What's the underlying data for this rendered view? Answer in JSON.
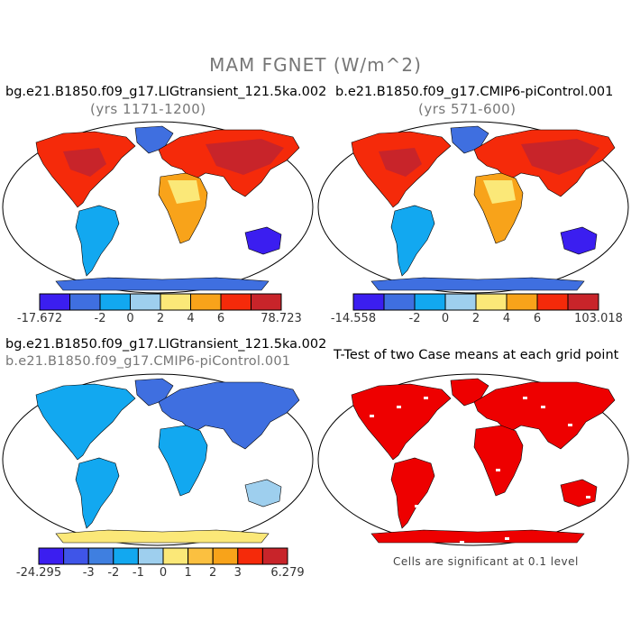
{
  "main_title": "MAM FGNET (W/m^2)",
  "colors": {
    "ocean": "#ffffff",
    "outline": "#000000",
    "significant": "#ee0000"
  },
  "chart_data": [
    {
      "type": "heatmap",
      "panel": "top-left",
      "title": "bg.e21.B1850.f09_g17.LIGtransient_121.5ka.002",
      "subtitle": "(yrs 1171-1200)",
      "colorbar": {
        "colors": [
          "#3b1ef0",
          "#3f6fe0",
          "#12a8f0",
          "#9ecfee",
          "#fbe878",
          "#f8a31a",
          "#f52a0a",
          "#c8242a"
        ],
        "tick_labels": [
          "-17.672",
          "-2",
          "0",
          "2",
          "4",
          "6",
          "78.723"
        ]
      }
    },
    {
      "type": "heatmap",
      "panel": "top-right",
      "title": "b.e21.B1850.f09_g17.CMIP6-piControl.001",
      "subtitle": "(yrs 571-600)",
      "colorbar": {
        "colors": [
          "#3b1ef0",
          "#3f6fe0",
          "#12a8f0",
          "#9ecfee",
          "#fbe878",
          "#f8a31a",
          "#f52a0a",
          "#c8242a"
        ],
        "tick_labels": [
          "-14.558",
          "-2",
          "0",
          "2",
          "4",
          "6",
          "103.018"
        ]
      }
    },
    {
      "type": "heatmap",
      "panel": "bottom-left",
      "title": "bg.e21.B1850.f09_g17.LIGtransient_121.5ka.002",
      "subtitle": "b.e21.B1850.f09_g17.CMIP6-piControl.001",
      "colorbar": {
        "colors": [
          "#3b1ef0",
          "#3f55e8",
          "#3f7fe0",
          "#12a8f0",
          "#9ecfee",
          "#fbe878",
          "#fbc040",
          "#f8a31a",
          "#f52a0a",
          "#c8242a"
        ],
        "tick_labels": [
          "-24.295",
          "-3",
          "-2",
          "-1",
          "0",
          "1",
          "2",
          "3",
          "6.279"
        ]
      }
    },
    {
      "type": "heatmap",
      "panel": "bottom-right",
      "title": "T-Test of two Case means at each grid point",
      "footnote": "Cells are significant at 0.1 level"
    }
  ]
}
